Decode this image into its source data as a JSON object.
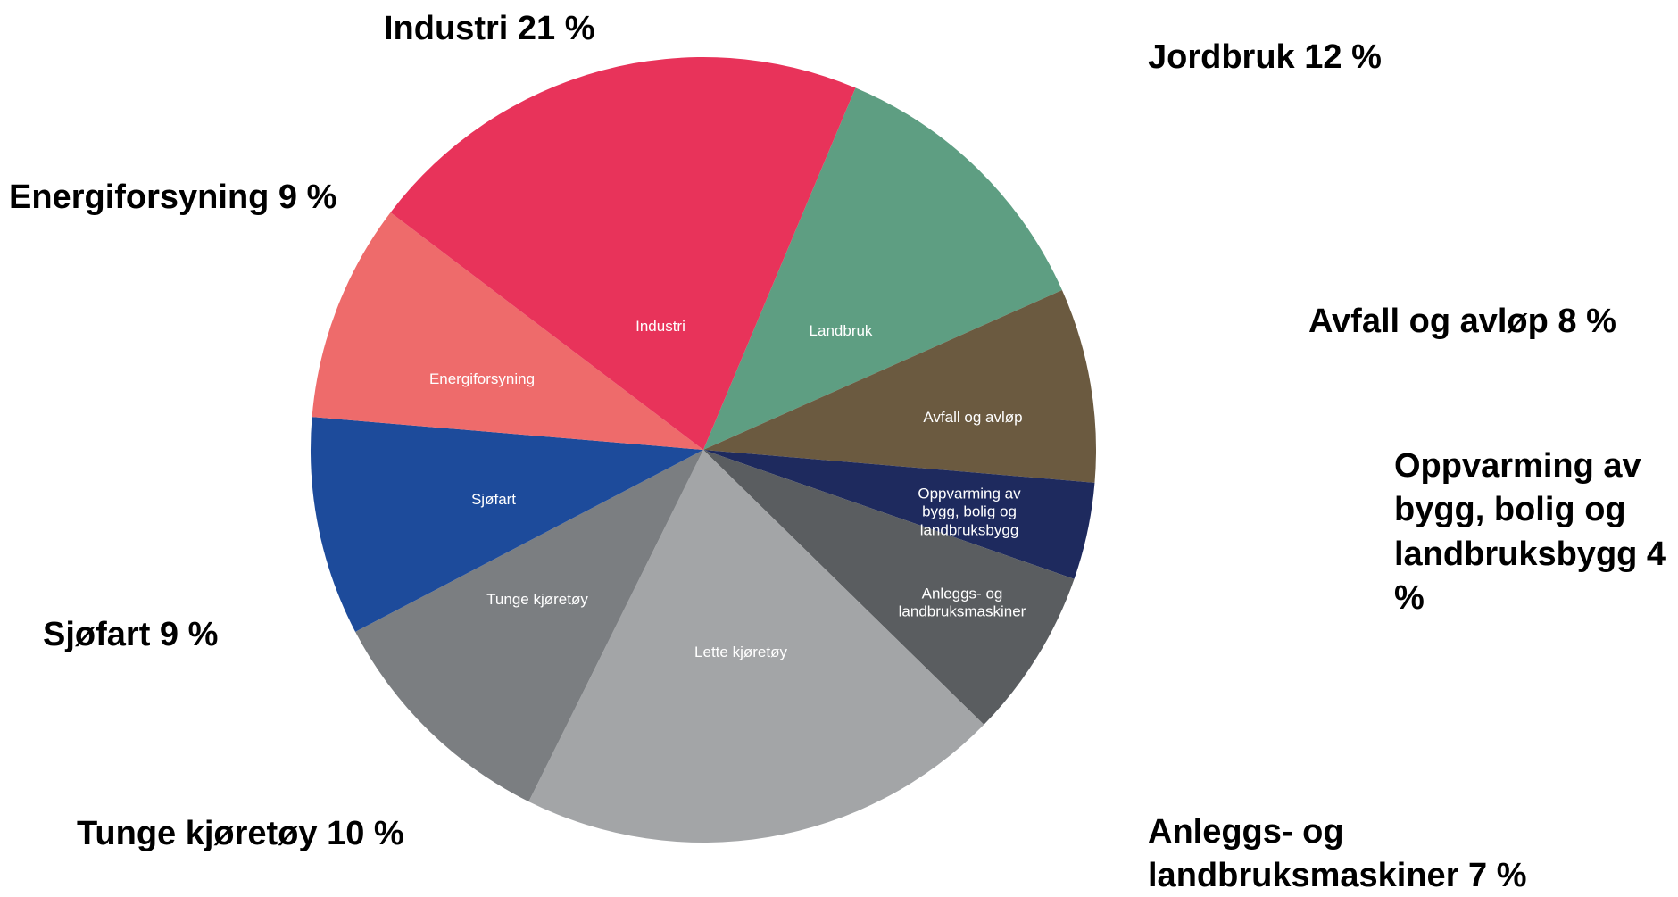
{
  "chart_data": {
    "type": "pie",
    "categories": [
      "Landbruk",
      "Avfall og avløp",
      "Oppvarming av bygg, bolig og landbruksbygg",
      "Anleggs- og landbruksmaskiner",
      "Lette kjøretøy",
      "Tunge kjøretøy",
      "Sjøfart",
      "Energiforsyning",
      "Industri"
    ],
    "values": [
      12,
      8,
      4,
      7,
      20,
      10,
      9,
      9,
      21
    ],
    "value_labels": [
      "Jordbruk 12 %",
      "Avfall og avløp 8 %",
      "Oppvarming av bygg, bolig og landbruksbygg 4 %",
      "Anleggs- og landbruksmaskiner 7 %",
      null,
      "Tunge kjøretøy 10 %",
      "Sjøfart 9 %",
      "Energiforsyning 9 %",
      "Industri 21 %"
    ],
    "colors": [
      "#5e9e82",
      "#6b5a40",
      "#1e2a5e",
      "#5a5d60",
      "#a3a5a7",
      "#7b7e81",
      "#1d4b9b",
      "#ee6b6b",
      "#e8335a"
    ]
  }
}
